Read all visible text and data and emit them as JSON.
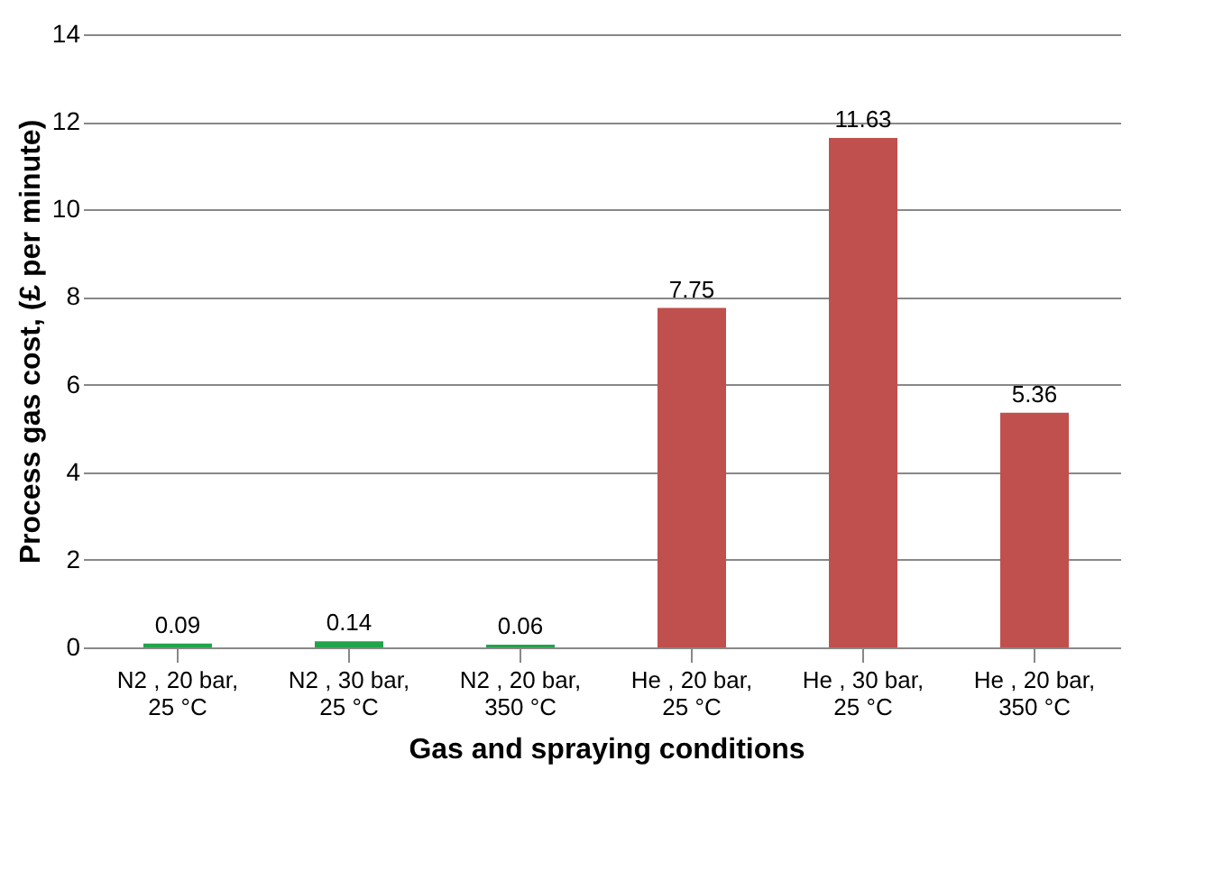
{
  "chart_data": {
    "type": "bar",
    "xlabel": "Gas and spraying conditions",
    "ylabel": "Process gas cost, (£ per minute)",
    "categories": [
      "N2 , 20 bar,\n25 °C",
      "N2 , 30 bar,\n25 °C",
      "N2 , 20 bar,\n350 °C",
      "He , 20 bar,\n25 °C",
      "He , 30 bar,\n25 °C",
      "He , 20 bar,\n350 °C"
    ],
    "values": [
      0.09,
      0.14,
      0.06,
      7.75,
      11.63,
      5.36
    ],
    "colors": [
      "#21a44a",
      "#21a44a",
      "#21a44a",
      "#c0504d",
      "#c0504d",
      "#c0504d"
    ],
    "ylim": [
      0,
      14
    ],
    "yticks": [
      0,
      2,
      4,
      6,
      8,
      10,
      12,
      14
    ],
    "grid": true,
    "data_labels": true
  }
}
